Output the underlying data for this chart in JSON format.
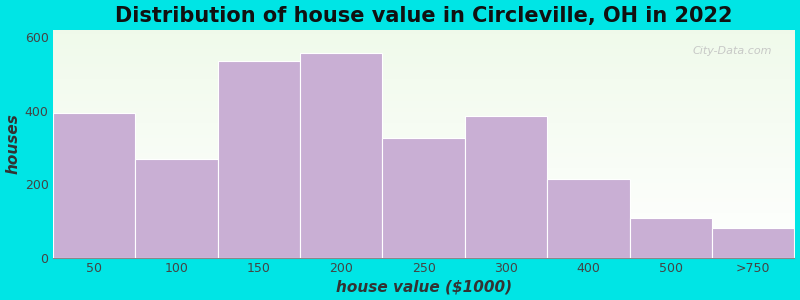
{
  "title": "Distribution of house value in Circleville, OH in 2022",
  "xlabel": "house value ($1000)",
  "ylabel": "houses",
  "categories": [
    "50",
    "100",
    "150",
    "200",
    "250",
    "300",
    "400",
    "500",
    ">750"
  ],
  "values": [
    393,
    268,
    535,
    557,
    325,
    385,
    215,
    108,
    83
  ],
  "bar_color": "#c9afd4",
  "background_color": "#00e5e5",
  "ylim": [
    0,
    620
  ],
  "yticks": [
    0,
    200,
    400,
    600
  ],
  "title_fontsize": 15,
  "axis_fontsize": 11,
  "tick_fontsize": 9,
  "watermark": "City-Data.com"
}
